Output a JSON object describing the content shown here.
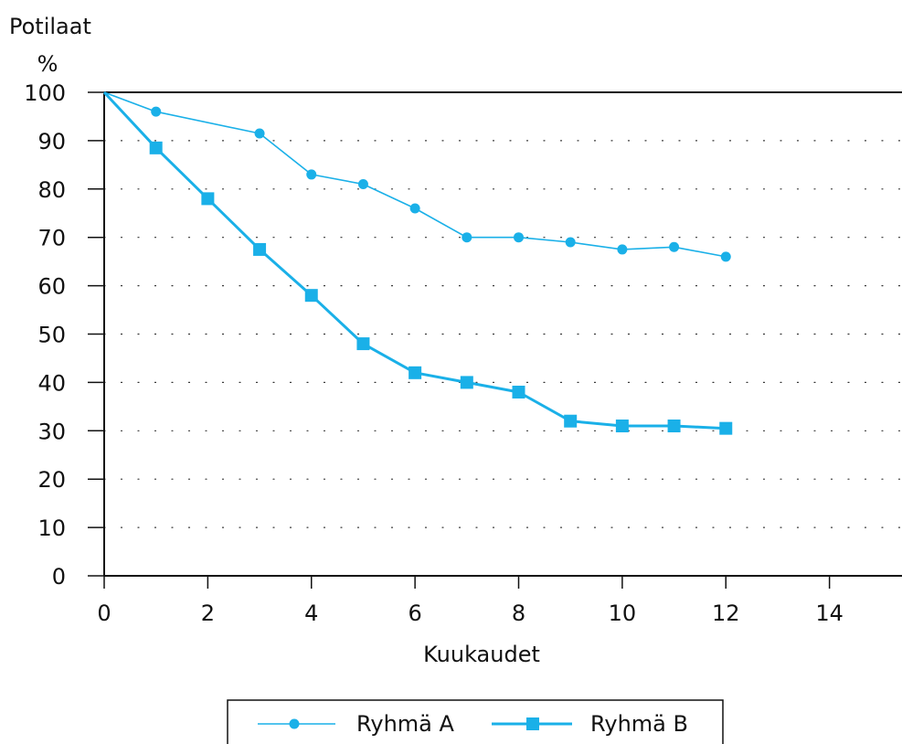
{
  "chart_data": {
    "type": "line",
    "ylabel_line1": "Potilaat",
    "ylabel_line2": "%",
    "xlabel": "Kuukaudet",
    "xlim": [
      0,
      15.4
    ],
    "ylim": [
      0,
      100
    ],
    "x_ticks": [
      0,
      2,
      4,
      6,
      8,
      10,
      12,
      14
    ],
    "x_tick_labels": [
      "0",
      "2",
      "4",
      "6",
      "8",
      "10",
      "12",
      "14"
    ],
    "y_ticks": [
      0,
      10,
      20,
      30,
      40,
      50,
      60,
      70,
      80,
      90,
      100
    ],
    "y_tick_labels": [
      "0",
      "10",
      "20",
      "30",
      "40",
      "50",
      "60",
      "70",
      "80",
      "90",
      "100"
    ],
    "grid": "dotted horizontal",
    "legend_position": "bottom-center",
    "series": [
      {
        "name": "Ryhmä A",
        "marker": "circle",
        "color": "#1ab0e8",
        "x": [
          0,
          1,
          3,
          4,
          5,
          6,
          7,
          8,
          9,
          10,
          11,
          12
        ],
        "values": [
          100,
          96,
          91.5,
          83,
          81,
          76,
          70,
          70,
          69,
          67.5,
          68,
          66
        ]
      },
      {
        "name": "Ryhmä B",
        "marker": "square",
        "color": "#1ab0e8",
        "x": [
          0,
          1,
          2,
          3,
          4,
          5,
          6,
          7,
          8,
          9,
          10,
          11,
          12
        ],
        "values": [
          100,
          88.5,
          78,
          67.5,
          58,
          48,
          42,
          40,
          38,
          32,
          31,
          31,
          30.5
        ]
      }
    ]
  }
}
